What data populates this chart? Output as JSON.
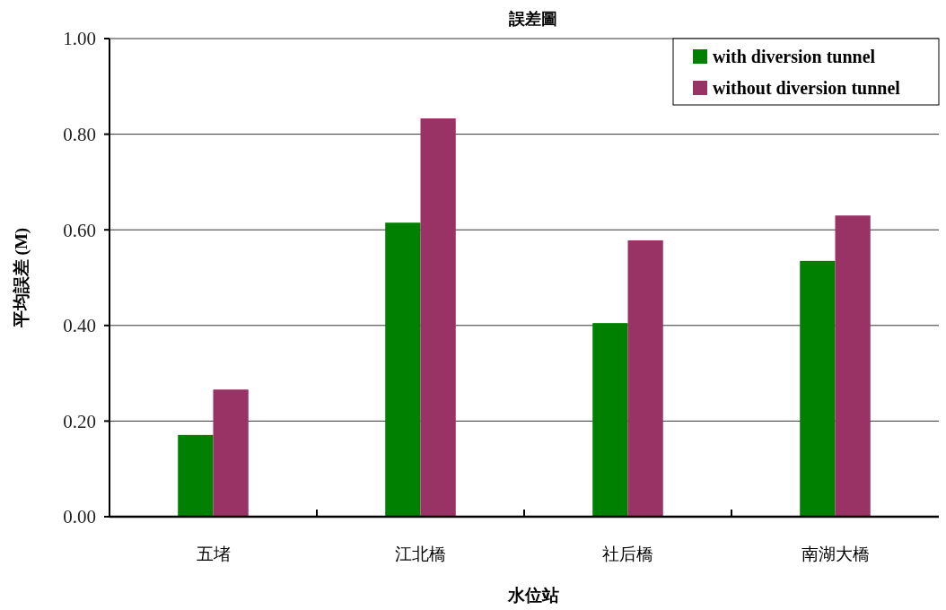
{
  "chart_data": {
    "type": "bar",
    "title": "誤差圖",
    "xlabel": "水位站",
    "ylabel": "平均誤差 (M)",
    "categories": [
      "五堵",
      "江北橋",
      "社后橋",
      "南湖大橋"
    ],
    "series": [
      {
        "name": "with diversion tunnel",
        "color": "#008000",
        "values": [
          0.171,
          0.615,
          0.405,
          0.535
        ]
      },
      {
        "name": "without diversion tunnel",
        "color": "#993366",
        "values": [
          0.266,
          0.833,
          0.578,
          0.63
        ]
      }
    ],
    "ylim": [
      0,
      1
    ],
    "yticks": [
      {
        "value": 0,
        "label": "0.00"
      },
      {
        "value": 0.2,
        "label": "0.20"
      },
      {
        "value": 0.4,
        "label": "0.40"
      },
      {
        "value": 0.6,
        "label": "0.60"
      },
      {
        "value": 0.8,
        "label": "0.80"
      },
      {
        "value": 1,
        "label": "1.00"
      }
    ],
    "grid": "y",
    "legend": "top right"
  }
}
